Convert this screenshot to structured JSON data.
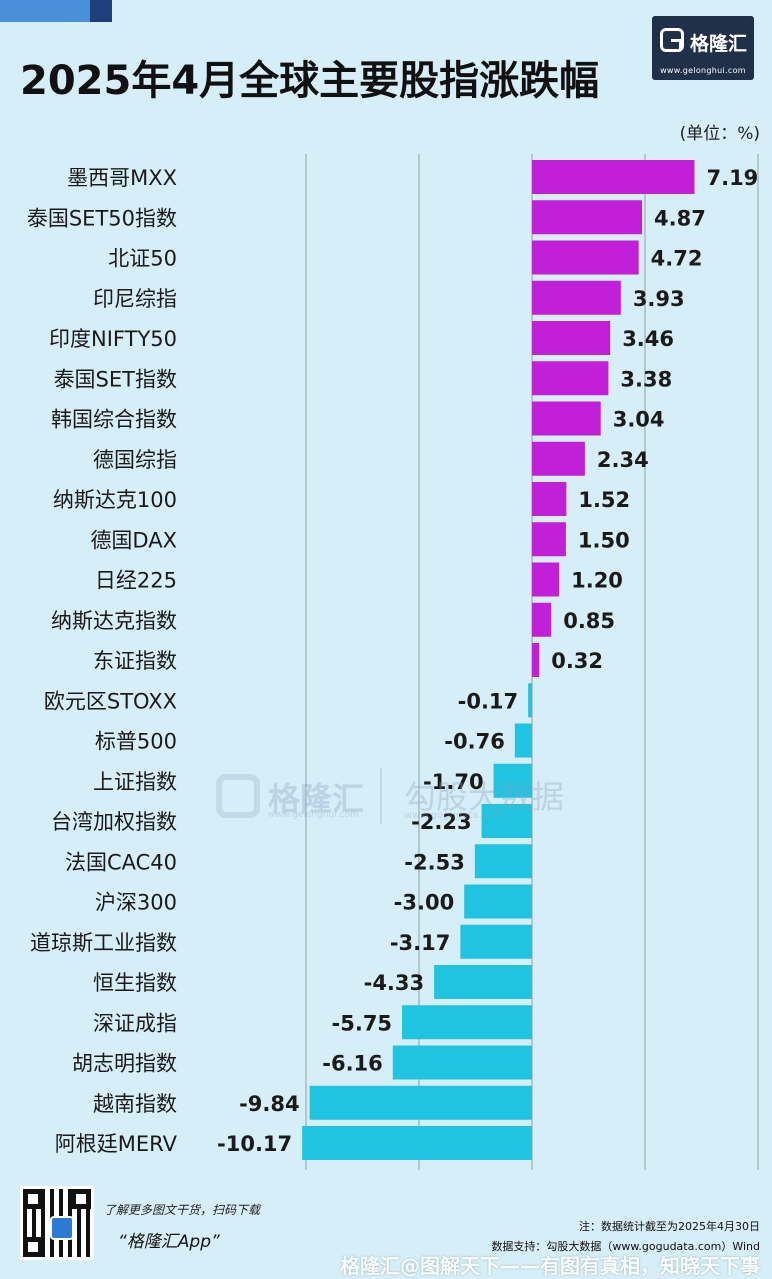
{
  "header": {
    "title": "2025年4月全球主要股指涨跌幅",
    "unit": "(单位：%)"
  },
  "logo": {
    "name": "格隆汇",
    "url": "www.gelonghui.com"
  },
  "watermark": {
    "brand": "格隆汇",
    "brand_url": "www.gelonghui.com",
    "data_brand": "勾股大数据",
    "data_url": "www.gogudata.com"
  },
  "colors": {
    "positive": "#c21fd9",
    "negative": "#1ec4e2",
    "background": "#d6eef8",
    "title_bar_dark": "#1f3048"
  },
  "chart_data": {
    "type": "bar",
    "orientation": "horizontal",
    "title": "2025年4月全球主要股指涨跌幅",
    "unit": "%",
    "categories": [
      "墨西哥MXX",
      "泰国SET50指数",
      "北证50",
      "印尼综指",
      "印度NIFTY50",
      "泰国SET指数",
      "韩国综合指数",
      "德国综指",
      "纳斯达克100",
      "德国DAX",
      "日经225",
      "纳斯达克指数",
      "东证指数",
      "欧元区STOXX",
      "标普500",
      "上证指数",
      "台湾加权指数",
      "法国CAC40",
      "沪深300",
      "道琼斯工业指数",
      "恒生指数",
      "深证成指",
      "胡志明指数",
      "越南指数",
      "阿根廷MERV"
    ],
    "values": [
      7.19,
      4.87,
      4.72,
      3.93,
      3.46,
      3.38,
      3.04,
      2.34,
      1.52,
      1.5,
      1.2,
      0.85,
      0.32,
      -0.17,
      -0.76,
      -1.7,
      -2.23,
      -2.53,
      -3.0,
      -3.17,
      -4.33,
      -5.75,
      -6.16,
      -9.84,
      -10.17
    ],
    "value_labels": [
      "7.19",
      "4.87",
      "4.72",
      "3.93",
      "3.46",
      "3.38",
      "3.04",
      "2.34",
      "1.52",
      "1.50",
      "1.20",
      "0.85",
      "0.32",
      "-0.17",
      "-0.76",
      "-1.70",
      "-2.23",
      "-2.53",
      "-3.00",
      "-3.17",
      "-4.33",
      "-5.75",
      "-6.16",
      "-9.84",
      "-10.17"
    ],
    "xlim": [
      -10.5,
      10
    ],
    "grid_lines_at": [
      -10,
      -5,
      0,
      5,
      10
    ],
    "grid": true,
    "legend": "none"
  },
  "footer": {
    "qr_prompt": "了解更多图文干货，扫码下载",
    "app_name": "“格隆汇App”",
    "note": "注：数据统计截至为2025年4月30日",
    "source": "数据支持：勾股大数据（www.gogudata.com）Wind",
    "platform_watermark": "格隆汇@图解天下——有图有真相，知晓天下事"
  }
}
